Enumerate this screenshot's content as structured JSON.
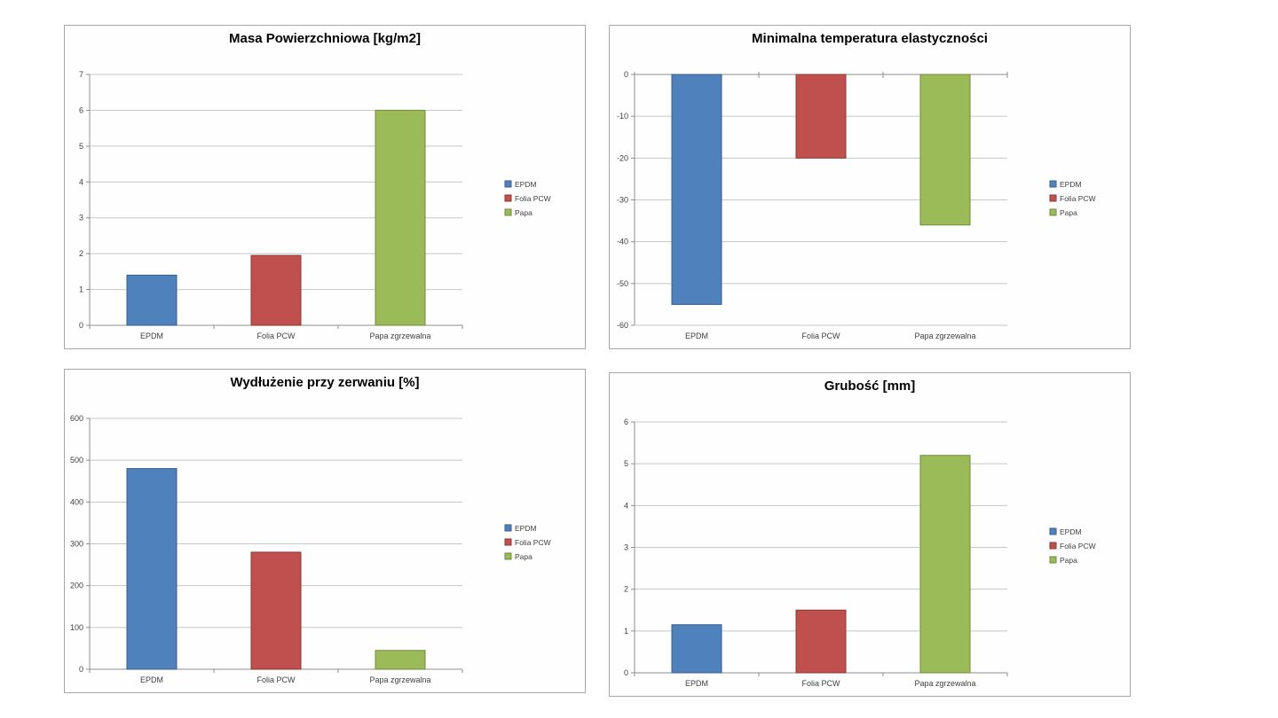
{
  "page": {
    "background_color": "#ffffff",
    "panel_border_color": "#a6a6a6"
  },
  "series_colors": [
    {
      "name": "EPDM",
      "fill": "#4F81BD",
      "border": "#385D8A"
    },
    {
      "name": "Folia PCW",
      "fill": "#C0504D",
      "border": "#8C3836"
    },
    {
      "name": "Papa",
      "fill": "#9BBB59",
      "border": "#71893F"
    }
  ],
  "chart_data": [
    {
      "type": "bar",
      "title": "Masa Powierzchniowa [kg/m2]",
      "categories": [
        "EPDM",
        "Folia PCW",
        "Papa zgrzewalna"
      ],
      "values": [
        1.4,
        1.95,
        6.0
      ],
      "ylim": [
        0,
        7
      ],
      "ytick": 1,
      "grid": true,
      "legend": [
        "EPDM",
        "Folia PCW",
        "Papa"
      ],
      "legend_position": "right"
    },
    {
      "type": "bar",
      "title": "Minimalna temperatura elastyczności",
      "categories": [
        "EPDM",
        "Folia PCW",
        "Papa zgrzewalna"
      ],
      "values": [
        -55,
        -20,
        -36
      ],
      "ylim": [
        -60,
        0
      ],
      "ytick": 10,
      "grid": true,
      "legend": [
        "EPDM",
        "Folia PCW",
        "Papa"
      ],
      "legend_position": "right"
    },
    {
      "type": "bar",
      "title": "Wydłużenie przy zerwaniu [%]",
      "categories": [
        "EPDM",
        "Folia PCW",
        "Papa zgrzewalna"
      ],
      "values": [
        480,
        280,
        45
      ],
      "ylim": [
        0,
        600
      ],
      "ytick": 100,
      "grid": true,
      "legend": [
        "EPDM",
        "Folia PCW",
        "Papa"
      ],
      "legend_position": "right"
    },
    {
      "type": "bar",
      "title": "Grubość [mm]",
      "categories": [
        "EPDM",
        "Folia PCW",
        "Papa zgrzewalna"
      ],
      "values": [
        1.15,
        1.5,
        5.2
      ],
      "ylim": [
        0,
        6
      ],
      "ytick": 1,
      "grid": true,
      "legend": [
        "EPDM",
        "Folia PCW",
        "Papa"
      ],
      "legend_position": "right"
    }
  ]
}
